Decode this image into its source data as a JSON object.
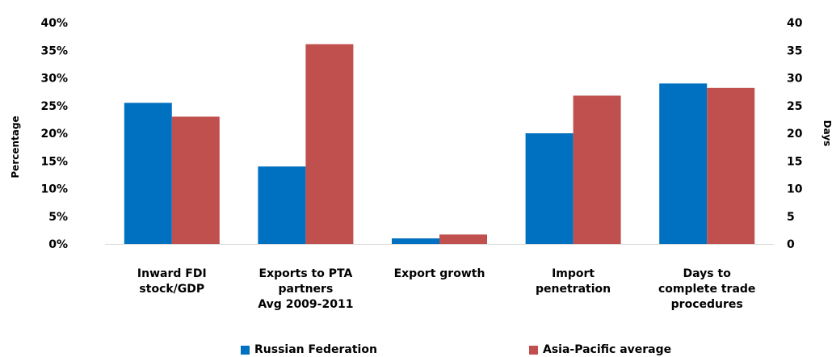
{
  "chart_data": {
    "type": "bar",
    "categories": [
      [
        "Inward FDI",
        "stock/GDP"
      ],
      [
        "Exports to PTA",
        "partners",
        "Avg 2009-2011"
      ],
      [
        "Export growth"
      ],
      [
        "Import",
        "penetration"
      ],
      [
        "Days to",
        "complete trade",
        "procedures"
      ]
    ],
    "series": [
      {
        "name": "Russian Federation",
        "color": "#0070c0",
        "values": [
          25.5,
          14.0,
          1.0,
          20.0,
          29.0
        ]
      },
      {
        "name": "Asia-Pacific average",
        "color": "#c0504d",
        "values": [
          23.0,
          36.1,
          1.7,
          26.8,
          28.2
        ]
      }
    ],
    "ylabel": "Percentage",
    "y2label": "Days",
    "ylim": [
      0,
      40
    ],
    "y2lim": [
      0,
      40
    ],
    "yticks": [
      "0%",
      "5%",
      "10%",
      "15%",
      "20%",
      "25%",
      "30%",
      "35%",
      "40%"
    ],
    "y2ticks": [
      "0",
      "5",
      "10",
      "15",
      "20",
      "25",
      "30",
      "35",
      "40"
    ],
    "grid": false,
    "legend_position": "bottom"
  }
}
